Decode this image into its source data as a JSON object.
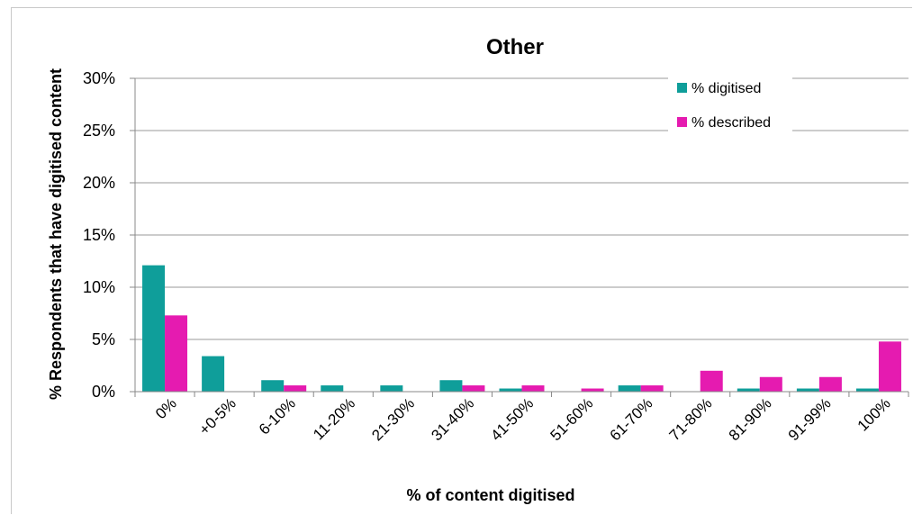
{
  "chart_data": {
    "type": "bar",
    "title": "Other",
    "xlabel": "% of content digitised",
    "ylabel": "% Respondents that have digitised content",
    "categories": [
      "0%",
      "+0-5%",
      "6-10%",
      "11-20%",
      "21-30%",
      "31-40%",
      "41-50%",
      "51-60%",
      "61-70%",
      "71-80%",
      "81-90%",
      "91-99%",
      "100%"
    ],
    "series": [
      {
        "name": "% digitised",
        "color": "#0f9e9a",
        "values": [
          12.1,
          3.4,
          1.1,
          0.6,
          0.6,
          1.1,
          0.3,
          0.0,
          0.6,
          0.0,
          0.3,
          0.3,
          0.3
        ]
      },
      {
        "name": "% described",
        "color": "#e51bb0",
        "values": [
          7.3,
          0.0,
          0.6,
          0.0,
          0.0,
          0.6,
          0.6,
          0.3,
          0.6,
          2.0,
          1.4,
          1.4,
          4.8
        ]
      }
    ],
    "ylim": [
      0,
      30
    ],
    "yticks": [
      0,
      5,
      10,
      15,
      20,
      25,
      30
    ],
    "ytick_format": "percent",
    "grid": true,
    "legend": "top-right"
  }
}
